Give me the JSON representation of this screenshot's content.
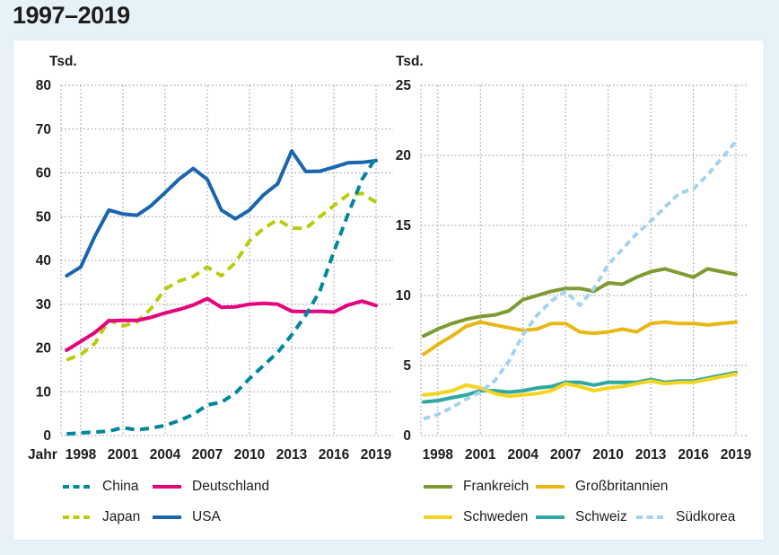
{
  "title": "1997–2019",
  "colors": {
    "background": "#e7f1f8",
    "panel": "#ffffff",
    "panel_border": "#d8eaf4",
    "grid": "#949494",
    "text": "#1d1d1b"
  },
  "chart_data": [
    {
      "type": "line",
      "ylabel": "Tsd.",
      "xlabel": "Jahr",
      "ylim": [
        0,
        80
      ],
      "yticks": [
        0,
        10,
        20,
        30,
        40,
        50,
        60,
        70,
        80
      ],
      "xticks": [
        1998,
        2001,
        2004,
        2007,
        2010,
        2013,
        2016,
        2019
      ],
      "grid": true,
      "legend_position": "bottom",
      "x": [
        1997,
        1998,
        1999,
        2000,
        2001,
        2002,
        2003,
        2004,
        2005,
        2006,
        2007,
        2008,
        2009,
        2010,
        2011,
        2012,
        2013,
        2014,
        2015,
        2016,
        2017,
        2018,
        2019
      ],
      "series": [
        {
          "name": "China",
          "color": "#00879b",
          "dashed": true,
          "values": [
            0.4,
            0.6,
            0.8,
            1.0,
            1.8,
            1.3,
            1.7,
            2.3,
            3.4,
            4.8,
            7.0,
            7.6,
            9.7,
            13.0,
            16.0,
            19.0,
            23.0,
            27.5,
            33.0,
            42.0,
            50.5,
            58.5,
            63.5
          ]
        },
        {
          "name": "Deutschland",
          "color": "#e5007d",
          "dashed": false,
          "values": [
            19.5,
            21.5,
            23.5,
            26.2,
            26.3,
            26.3,
            27.0,
            28.0,
            28.8,
            29.8,
            31.3,
            29.3,
            29.4,
            30.0,
            30.2,
            30.0,
            28.4,
            28.3,
            28.4,
            28.2,
            29.8,
            30.7,
            29.7
          ]
        },
        {
          "name": "Japan",
          "color": "#b9cc10",
          "dashed": true,
          "values": [
            17.3,
            18.5,
            21.0,
            26.4,
            25.0,
            26.0,
            29.0,
            33.5,
            35.3,
            36.3,
            38.5,
            36.5,
            39.5,
            44.5,
            47.3,
            49.3,
            47.4,
            47.3,
            50.0,
            52.5,
            55.0,
            55.3,
            53.3
          ]
        },
        {
          "name": "USA",
          "color": "#1a66ae",
          "dashed": false,
          "values": [
            36.5,
            38.5,
            45.5,
            51.5,
            50.6,
            50.3,
            52.5,
            55.5,
            58.6,
            61.0,
            58.5,
            51.5,
            49.5,
            51.5,
            55.0,
            57.5,
            65.0,
            60.3,
            60.4,
            61.3,
            62.3,
            62.4,
            62.8
          ]
        }
      ]
    },
    {
      "type": "line",
      "ylabel": "Tsd.",
      "xlabel": "",
      "ylim": [
        0,
        25
      ],
      "yticks": [
        0,
        5,
        10,
        15,
        20,
        25
      ],
      "xticks": [
        1998,
        2001,
        2004,
        2007,
        2010,
        2013,
        2016,
        2019
      ],
      "grid": true,
      "legend_position": "bottom",
      "x": [
        1997,
        1998,
        1999,
        2000,
        2001,
        2002,
        2003,
        2004,
        2005,
        2006,
        2007,
        2008,
        2009,
        2010,
        2011,
        2012,
        2013,
        2014,
        2015,
        2016,
        2017,
        2018,
        2019
      ],
      "series": [
        {
          "name": "Frankreich",
          "color": "#7e9b33",
          "dashed": false,
          "values": [
            7.1,
            7.6,
            8.0,
            8.3,
            8.5,
            8.6,
            8.9,
            9.7,
            10.0,
            10.3,
            10.5,
            10.5,
            10.3,
            10.9,
            10.8,
            11.3,
            11.7,
            11.9,
            11.6,
            11.3,
            11.9,
            11.7,
            11.5
          ]
        },
        {
          "name": "Großbritannien",
          "color": "#e9b716",
          "dashed": false,
          "values": [
            5.8,
            6.5,
            7.1,
            7.8,
            8.1,
            7.9,
            7.7,
            7.5,
            7.6,
            8.0,
            8.0,
            7.4,
            7.3,
            7.4,
            7.6,
            7.4,
            8.0,
            8.1,
            8.0,
            8.0,
            7.9,
            8.0,
            8.1
          ]
        },
        {
          "name": "Schweden",
          "color": "#f5d41f",
          "dashed": false,
          "values": [
            2.9,
            3.0,
            3.2,
            3.6,
            3.4,
            3.0,
            2.8,
            2.9,
            3.0,
            3.2,
            3.7,
            3.5,
            3.2,
            3.4,
            3.5,
            3.7,
            3.9,
            3.7,
            3.8,
            3.8,
            4.0,
            4.2,
            4.4
          ]
        },
        {
          "name": "Schweiz",
          "color": "#2fa8a2",
          "dashed": false,
          "values": [
            2.4,
            2.5,
            2.7,
            2.9,
            3.2,
            3.2,
            3.1,
            3.2,
            3.4,
            3.5,
            3.8,
            3.8,
            3.6,
            3.8,
            3.8,
            3.8,
            4.0,
            3.8,
            3.9,
            3.9,
            4.1,
            4.3,
            4.5
          ]
        },
        {
          "name": "Südkorea",
          "color": "#a3d3ee",
          "dashed": true,
          "values": [
            1.2,
            1.5,
            2.0,
            2.6,
            3.1,
            3.9,
            5.3,
            7.2,
            8.6,
            9.6,
            10.3,
            9.3,
            10.5,
            12.2,
            13.3,
            14.4,
            15.3,
            16.3,
            17.3,
            17.6,
            18.6,
            19.8,
            21.0
          ]
        }
      ]
    }
  ]
}
